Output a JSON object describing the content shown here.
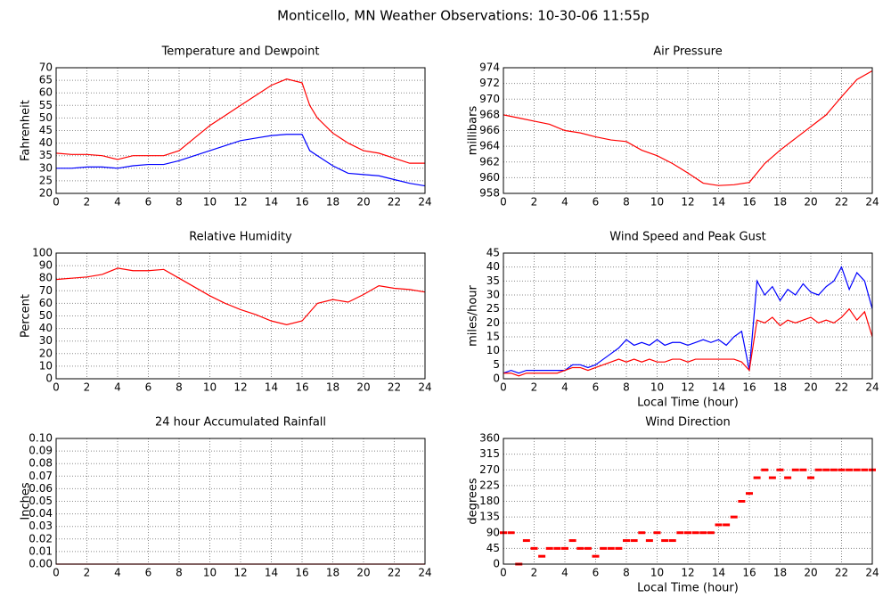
{
  "title": "Monticello, MN Weather Observations: 10-30-06 11:55p",
  "chart_data": [
    {
      "type": "line",
      "title": "Temperature and Dewpoint",
      "ylabel": "Fahrenheit",
      "x": [
        0,
        1,
        2,
        3,
        4,
        5,
        6,
        7,
        8,
        9,
        10,
        11,
        12,
        13,
        14,
        15,
        16,
        16.5,
        17,
        18,
        19,
        20,
        21,
        22,
        23,
        24
      ],
      "series": [
        {
          "color": "#ff0000",
          "values": [
            36,
            35.5,
            35.5,
            35,
            33.5,
            35,
            35,
            35,
            37,
            42,
            47,
            51,
            55,
            59,
            63,
            65.5,
            64,
            55,
            50,
            44,
            40,
            37,
            36,
            34,
            32,
            32
          ]
        },
        {
          "color": "#0000ff",
          "values": [
            30,
            30,
            30.5,
            30.5,
            30,
            31,
            31.5,
            31.5,
            33,
            35,
            37,
            39,
            41,
            42,
            43,
            43.5,
            43.5,
            37,
            35,
            31,
            28,
            27.5,
            27,
            25.5,
            24,
            23
          ]
        }
      ],
      "xlim": [
        0,
        24
      ],
      "xticks": [
        0,
        2,
        4,
        6,
        8,
        10,
        12,
        14,
        16,
        18,
        20,
        22,
        24
      ],
      "ylim": [
        20,
        70
      ],
      "yticks": [
        20,
        25,
        30,
        35,
        40,
        45,
        50,
        55,
        60,
        65,
        70
      ],
      "grid": true
    },
    {
      "type": "line",
      "title": "Air Pressure",
      "ylabel": "millibars",
      "x": [
        0,
        1,
        2,
        3,
        4,
        5,
        6,
        7,
        8,
        9,
        10,
        11,
        12,
        13,
        14,
        15,
        16,
        16.5,
        17,
        18,
        19,
        20,
        21,
        22,
        23,
        24
      ],
      "series": [
        {
          "color": "#ff0000",
          "values": [
            968,
            967.6,
            967.2,
            966.8,
            966,
            965.7,
            965.2,
            964.8,
            964.6,
            963.5,
            962.8,
            961.8,
            960.6,
            959.3,
            959,
            959.1,
            959.4,
            960.6,
            961.8,
            963.5,
            965,
            966.5,
            968,
            970.3,
            972.5,
            973.6
          ]
        }
      ],
      "xlim": [
        0,
        24
      ],
      "xticks": [
        0,
        2,
        4,
        6,
        8,
        10,
        12,
        14,
        16,
        18,
        20,
        22,
        24
      ],
      "ylim": [
        958,
        974
      ],
      "yticks": [
        958,
        960,
        962,
        964,
        966,
        968,
        970,
        972,
        974
      ],
      "grid": true
    },
    {
      "type": "line",
      "title": "Relative Humidity",
      "ylabel": "Percent",
      "x": [
        0,
        1,
        2,
        3,
        4,
        5,
        6,
        7,
        8,
        9,
        10,
        11,
        12,
        13,
        14,
        15,
        16,
        16.5,
        17,
        18,
        19,
        20,
        21,
        22,
        23,
        24
      ],
      "series": [
        {
          "color": "#ff0000",
          "values": [
            79,
            80,
            81,
            83,
            88,
            86,
            86,
            87,
            80,
            73,
            66,
            60,
            55,
            51,
            46,
            43,
            46,
            53,
            60,
            63,
            61,
            67,
            74,
            72,
            71,
            69
          ]
        }
      ],
      "xlim": [
        0,
        24
      ],
      "xticks": [
        0,
        2,
        4,
        6,
        8,
        10,
        12,
        14,
        16,
        18,
        20,
        22,
        24
      ],
      "ylim": [
        0,
        100
      ],
      "yticks": [
        0,
        10,
        20,
        30,
        40,
        50,
        60,
        70,
        80,
        90,
        100
      ],
      "grid": true
    },
    {
      "type": "line",
      "title": "Wind Speed and Peak Gust",
      "ylabel": "miles/hour",
      "xlabel": "Local Time (hour)",
      "x": [
        0,
        0.5,
        1,
        1.5,
        2,
        2.5,
        3,
        3.5,
        4,
        4.5,
        5,
        5.5,
        6,
        6.5,
        7,
        7.5,
        8,
        8.5,
        9,
        9.5,
        10,
        10.5,
        11,
        11.5,
        12,
        12.5,
        13,
        13.5,
        14,
        14.5,
        15,
        15.5,
        16,
        16.5,
        17,
        17.5,
        18,
        18.5,
        19,
        19.5,
        20,
        20.5,
        21,
        21.5,
        22,
        22.5,
        23,
        23.5,
        24
      ],
      "series": [
        {
          "color": "#0000ff",
          "values": [
            2,
            3,
            2,
            3,
            3,
            3,
            3,
            3,
            3,
            5,
            5,
            4,
            5,
            7,
            9,
            11,
            14,
            12,
            13,
            12,
            14,
            12,
            13,
            13,
            12,
            13,
            14,
            13,
            14,
            12,
            15,
            17,
            3,
            35,
            30,
            33,
            28,
            32,
            30,
            34,
            31,
            30,
            33,
            35,
            40,
            32,
            38,
            35,
            25
          ]
        },
        {
          "color": "#ff0000",
          "values": [
            2,
            2,
            1,
            2,
            2,
            2,
            2,
            2,
            3,
            4,
            4,
            3,
            4,
            5,
            6,
            7,
            6,
            7,
            6,
            7,
            6,
            6,
            7,
            7,
            6,
            7,
            7,
            7,
            7,
            7,
            7,
            6,
            3,
            21,
            20,
            22,
            19,
            21,
            20,
            21,
            22,
            20,
            21,
            20,
            22,
            25,
            21,
            24,
            15
          ]
        }
      ],
      "xlim": [
        0,
        24
      ],
      "xticks": [
        0,
        2,
        4,
        6,
        8,
        10,
        12,
        14,
        16,
        18,
        20,
        22,
        24
      ],
      "ylim": [
        0,
        45
      ],
      "yticks": [
        0,
        5,
        10,
        15,
        20,
        25,
        30,
        35,
        40,
        45
      ],
      "grid": true
    },
    {
      "type": "line",
      "title": "24 hour Accumulated Rainfall",
      "ylabel": "Inches",
      "x": [
        0,
        24
      ],
      "series": [
        {
          "color": "#ff0000",
          "values": [
            0,
            0
          ]
        }
      ],
      "xlim": [
        0,
        24
      ],
      "xticks": [
        0,
        2,
        4,
        6,
        8,
        10,
        12,
        14,
        16,
        18,
        20,
        22,
        24
      ],
      "ylim": [
        0,
        0.1
      ],
      "yticks": [
        {
          "value": 0,
          "label": "0.00"
        },
        {
          "value": 0.01,
          "label": "0.01"
        },
        {
          "value": 0.02,
          "label": "0.02"
        },
        {
          "value": 0.03,
          "label": "0.03"
        },
        {
          "value": 0.04,
          "label": "0.04"
        },
        {
          "value": 0.05,
          "label": "0.05"
        },
        {
          "value": 0.06,
          "label": "0.06"
        },
        {
          "value": 0.07,
          "label": "0.07"
        },
        {
          "value": 0.08,
          "label": "0.08"
        },
        {
          "value": 0.09,
          "label": "0.09"
        },
        {
          "value": 0.1,
          "label": "0.10"
        }
      ],
      "grid": true
    },
    {
      "type": "scatter",
      "title": "Wind Direction",
      "ylabel": "degrees",
      "xlabel": "Local Time (hour)",
      "x": [
        0,
        0.5,
        1,
        1.5,
        2,
        2.5,
        3,
        3.5,
        4,
        4.5,
        5,
        5.5,
        6,
        6.5,
        7,
        7.5,
        8,
        8.5,
        9,
        9.5,
        10,
        10.5,
        11,
        11.5,
        12,
        12.5,
        13,
        13.5,
        14,
        14.5,
        15,
        15.5,
        16,
        16.5,
        17,
        17.5,
        18,
        18.5,
        19,
        19.5,
        20,
        20.5,
        21,
        21.5,
        22,
        22.5,
        23,
        23.5,
        24
      ],
      "series": [
        {
          "color": "#ff0000",
          "values": [
            90,
            90,
            0,
            67.5,
            45,
            22.5,
            45,
            45,
            45,
            67.5,
            45,
            45,
            22.5,
            45,
            45,
            45,
            67.5,
            67.5,
            90,
            67.5,
            90,
            67.5,
            67.5,
            90,
            90,
            90,
            90,
            90,
            112.5,
            112.5,
            135,
            180,
            202.5,
            247.5,
            270,
            247.5,
            270,
            247.5,
            270,
            270,
            247.5,
            270,
            270,
            270,
            270,
            270,
            270,
            270,
            270
          ]
        }
      ],
      "xlim": [
        0,
        24
      ],
      "xticks": [
        0,
        2,
        4,
        6,
        8,
        10,
        12,
        14,
        16,
        18,
        20,
        22,
        24
      ],
      "ylim": [
        0,
        360
      ],
      "yticks": [
        0,
        45,
        90,
        135,
        180,
        225,
        270,
        315,
        360
      ],
      "grid": true
    }
  ]
}
